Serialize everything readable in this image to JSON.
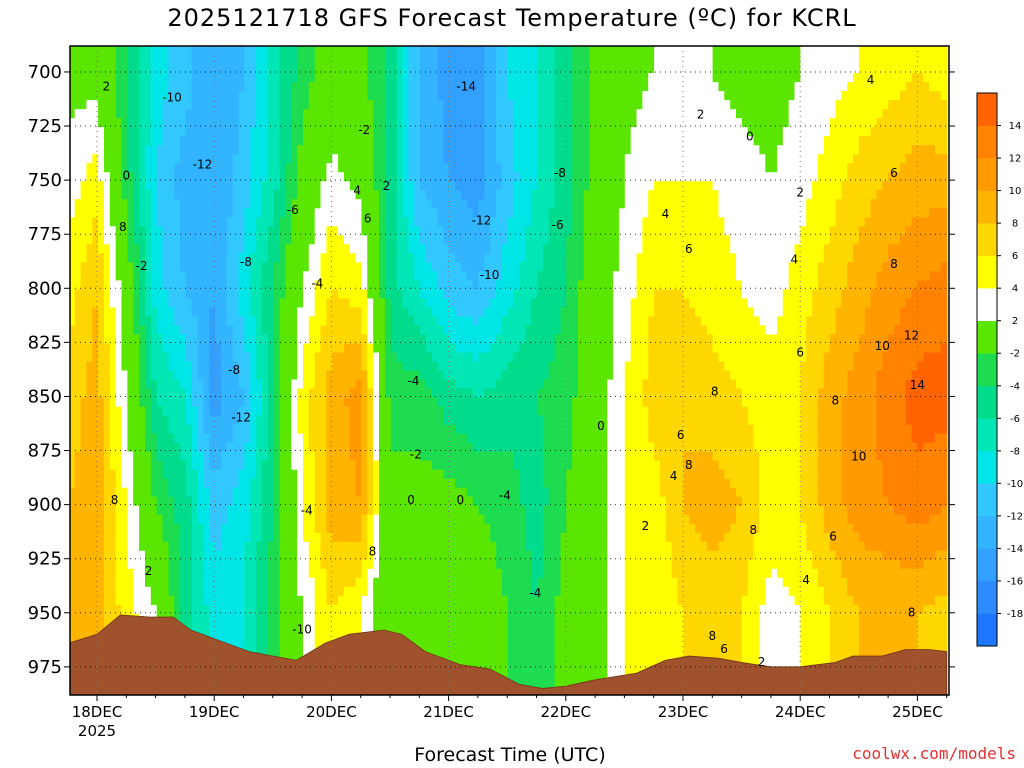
{
  "title": "2025121718 GFS Forecast Temperature (ºC) for KCRL",
  "xlabel": "Forecast Time (UTC)",
  "credit": "coolwx.com/models",
  "chart_data": {
    "type": "heatmap",
    "title": "2025121718 GFS Forecast Temperature (ºC) for KCRL",
    "xlabel": "Forecast Time (UTC)",
    "ylabel": "",
    "x_ticks": [
      {
        "label": "18DEC",
        "sub": "2025",
        "t": 0
      },
      {
        "label": "19DEC",
        "sub": "",
        "t": 1
      },
      {
        "label": "20DEC",
        "sub": "",
        "t": 2
      },
      {
        "label": "21DEC",
        "sub": "",
        "t": 3
      },
      {
        "label": "22DEC",
        "sub": "",
        "t": 4
      },
      {
        "label": "23DEC",
        "sub": "",
        "t": 5
      },
      {
        "label": "24DEC",
        "sub": "",
        "t": 6
      },
      {
        "label": "25DEC",
        "sub": "",
        "t": 7
      }
    ],
    "xlim": [
      -0.24,
      7.25
    ],
    "y_ticks": [
      700,
      725,
      750,
      775,
      800,
      825,
      850,
      875,
      900,
      925,
      950,
      975
    ],
    "ylim": [
      688,
      988
    ],
    "colorbar": {
      "levels": [
        -20,
        -18,
        -16,
        -14,
        -12,
        -10,
        -8,
        -6,
        -4,
        -2,
        2,
        4,
        6,
        8,
        10,
        12,
        14,
        16
      ],
      "labels": [
        -18,
        -16,
        -14,
        -12,
        -10,
        -8,
        -6,
        -4,
        -2,
        2,
        4,
        6,
        8,
        10,
        12,
        14
      ],
      "colors": [
        "#1e78ff",
        "#2c8cff",
        "#32a0ff",
        "#32b4ff",
        "#32c8ff",
        "#00e6e6",
        "#00e6b4",
        "#00dc8c",
        "#1edc50",
        "#5ae600",
        "#ffffff",
        "#ffff00",
        "#ffd700",
        "#ffb400",
        "#ff9b00",
        "#ff8200",
        "#ff6400"
      ]
    },
    "times": [
      -0.24,
      0,
      0.25,
      0.5,
      0.75,
      1,
      1.25,
      1.5,
      1.75,
      2,
      2.25,
      2.5,
      2.75,
      3,
      3.25,
      3.5,
      3.75,
      4,
      4.25,
      4.5,
      4.75,
      5,
      5.25,
      5.5,
      5.75,
      6,
      6.25,
      6.5,
      6.75,
      7,
      7.25
    ],
    "levels": [
      700,
      750,
      800,
      850,
      900,
      950,
      988
    ],
    "temperature": [
      [
        1,
        3,
        5,
        7,
        8,
        9,
        9
      ],
      [
        1,
        5,
        8,
        9,
        9,
        9,
        9
      ],
      [
        -4,
        -3,
        0,
        2,
        4,
        5,
        5
      ],
      [
        -9,
        -10,
        -9,
        -6,
        -2,
        2,
        3
      ],
      [
        -11,
        -13,
        -12,
        -8,
        -5,
        -5,
        -5
      ],
      [
        -14,
        -14,
        -14,
        -15,
        -11,
        -9,
        -9
      ],
      [
        -12,
        -11,
        -9,
        -12,
        -9,
        -8,
        -8
      ],
      [
        -7,
        -7,
        -4,
        -5,
        -4,
        -3,
        -3
      ],
      [
        -3,
        -1,
        2,
        5,
        4,
        2,
        2
      ],
      [
        -1,
        3,
        6,
        9,
        9,
        6,
        6
      ],
      [
        -1,
        1,
        5,
        11,
        10,
        4,
        4
      ],
      [
        -5,
        -5,
        -5,
        -3,
        -1,
        -2,
        -2
      ],
      [
        -12,
        -12,
        -8,
        -3,
        -1,
        -1,
        -1
      ],
      [
        -15,
        -14,
        -11,
        -5,
        -1,
        1,
        1
      ],
      [
        -15,
        -15,
        -12,
        -6,
        -2,
        0,
        0
      ],
      [
        -10,
        -11,
        -9,
        -5,
        -3,
        -2,
        -2
      ],
      [
        -8,
        -8,
        -6,
        -4,
        -5,
        -4,
        -4
      ],
      [
        -5,
        -5,
        -4,
        -3,
        -2,
        -1,
        -1
      ],
      [
        -1,
        -1,
        0,
        0,
        1,
        1,
        1
      ],
      [
        1,
        2,
        3,
        4,
        4,
        4,
        4
      ],
      [
        2,
        4,
        6,
        7,
        5,
        4,
        4
      ],
      [
        2,
        4,
        6,
        8,
        8,
        6,
        6
      ],
      [
        2,
        4,
        5,
        7,
        9,
        7,
        7
      ],
      [
        1,
        3,
        4,
        6,
        8,
        6,
        6
      ],
      [
        1,
        2,
        3,
        5,
        5,
        3,
        3
      ],
      [
        2,
        3,
        5,
        6,
        6,
        4,
        4
      ],
      [
        3,
        5,
        7,
        9,
        9,
        6,
        6
      ],
      [
        4,
        7,
        9,
        11,
        11,
        8,
        8
      ],
      [
        5,
        8,
        11,
        13,
        12,
        8,
        8
      ],
      [
        6,
        9,
        12,
        15,
        13,
        8,
        8
      ],
      [
        5,
        9,
        13,
        15,
        12,
        7,
        7
      ]
    ],
    "terrain_pressure": [
      [
        -0.24,
        964
      ],
      [
        0,
        960
      ],
      [
        0.2,
        951
      ],
      [
        0.45,
        952
      ],
      [
        0.65,
        952
      ],
      [
        0.8,
        958
      ],
      [
        1.0,
        962
      ],
      [
        1.3,
        968
      ],
      [
        1.5,
        970
      ],
      [
        1.7,
        972
      ],
      [
        1.95,
        964
      ],
      [
        2.15,
        960
      ],
      [
        2.45,
        958
      ],
      [
        2.6,
        960
      ],
      [
        2.8,
        968
      ],
      [
        3.1,
        974
      ],
      [
        3.35,
        976
      ],
      [
        3.6,
        983
      ],
      [
        3.8,
        985
      ],
      [
        4.0,
        984
      ],
      [
        4.25,
        981
      ],
      [
        4.6,
        978
      ],
      [
        4.85,
        972
      ],
      [
        5.05,
        970
      ],
      [
        5.3,
        971
      ],
      [
        5.5,
        973
      ],
      [
        5.75,
        975
      ],
      [
        6.0,
        975
      ],
      [
        6.3,
        973
      ],
      [
        6.45,
        970
      ],
      [
        6.7,
        970
      ],
      [
        6.9,
        967
      ],
      [
        7.1,
        967
      ],
      [
        7.25,
        968
      ]
    ],
    "contour_labels": [
      {
        "t": 0.08,
        "p": 707,
        "text": "2"
      },
      {
        "t": 0.25,
        "p": 748,
        "text": "0"
      },
      {
        "t": 0.22,
        "p": 772,
        "text": "8"
      },
      {
        "t": 0.38,
        "p": 790,
        "text": "-2"
      },
      {
        "t": 0.15,
        "p": 898,
        "text": "8"
      },
      {
        "t": 0.44,
        "p": 931,
        "text": "2"
      },
      {
        "t": 0.64,
        "p": 712,
        "text": "-10"
      },
      {
        "t": 0.9,
        "p": 743,
        "text": "-12"
      },
      {
        "t": 1.27,
        "p": 788,
        "text": "-8"
      },
      {
        "t": 1.17,
        "p": 838,
        "text": "-8"
      },
      {
        "t": 1.23,
        "p": 860,
        "text": "-12"
      },
      {
        "t": 1.75,
        "p": 958,
        "text": "-10"
      },
      {
        "t": 1.67,
        "p": 764,
        "text": "-6"
      },
      {
        "t": 1.88,
        "p": 798,
        "text": "-4"
      },
      {
        "t": 1.79,
        "p": 903,
        "text": "-4"
      },
      {
        "t": 2.28,
        "p": 727,
        "text": "-2"
      },
      {
        "t": 2.22,
        "p": 755,
        "text": "4"
      },
      {
        "t": 2.47,
        "p": 753,
        "text": "2"
      },
      {
        "t": 2.31,
        "p": 768,
        "text": "6"
      },
      {
        "t": 2.35,
        "p": 922,
        "text": "8"
      },
      {
        "t": 2.7,
        "p": 843,
        "text": "-4"
      },
      {
        "t": 2.72,
        "p": 877,
        "text": "-2"
      },
      {
        "t": 2.68,
        "p": 898,
        "text": "0"
      },
      {
        "t": 3.15,
        "p": 707,
        "text": "-14"
      },
      {
        "t": 3.28,
        "p": 769,
        "text": "-12"
      },
      {
        "t": 3.35,
        "p": 794,
        "text": "-10"
      },
      {
        "t": 3.95,
        "p": 747,
        "text": "-8"
      },
      {
        "t": 3.93,
        "p": 771,
        "text": "-6"
      },
      {
        "t": 3.48,
        "p": 896,
        "text": "-4"
      },
      {
        "t": 3.74,
        "p": 941,
        "text": "-4"
      },
      {
        "t": 3.1,
        "p": 898,
        "text": "0"
      },
      {
        "t": 4.3,
        "p": 864,
        "text": "0"
      },
      {
        "t": 5.15,
        "p": 720,
        "text": "2"
      },
      {
        "t": 5.57,
        "p": 730,
        "text": "0"
      },
      {
        "t": 6.0,
        "p": 756,
        "text": "2"
      },
      {
        "t": 4.85,
        "p": 766,
        "text": "4"
      },
      {
        "t": 5.05,
        "p": 782,
        "text": "6"
      },
      {
        "t": 5.95,
        "p": 787,
        "text": "4"
      },
      {
        "t": 6.6,
        "p": 704,
        "text": "4"
      },
      {
        "t": 6.8,
        "p": 747,
        "text": "6"
      },
      {
        "t": 6.8,
        "p": 789,
        "text": "8"
      },
      {
        "t": 6.7,
        "p": 827,
        "text": "10"
      },
      {
        "t": 6.95,
        "p": 822,
        "text": "12"
      },
      {
        "t": 7.0,
        "p": 845,
        "text": "14"
      },
      {
        "t": 6.3,
        "p": 852,
        "text": "8"
      },
      {
        "t": 6.5,
        "p": 878,
        "text": "10"
      },
      {
        "t": 6.0,
        "p": 830,
        "text": "6"
      },
      {
        "t": 5.27,
        "p": 848,
        "text": "8"
      },
      {
        "t": 4.98,
        "p": 868,
        "text": "6"
      },
      {
        "t": 5.05,
        "p": 882,
        "text": "8"
      },
      {
        "t": 4.92,
        "p": 887,
        "text": "4"
      },
      {
        "t": 4.68,
        "p": 910,
        "text": "2"
      },
      {
        "t": 5.6,
        "p": 912,
        "text": "8"
      },
      {
        "t": 6.05,
        "p": 935,
        "text": "4"
      },
      {
        "t": 6.28,
        "p": 915,
        "text": "6"
      },
      {
        "t": 5.25,
        "p": 961,
        "text": "8"
      },
      {
        "t": 5.35,
        "p": 967,
        "text": "6"
      },
      {
        "t": 5.67,
        "p": 973,
        "text": "2"
      },
      {
        "t": 6.95,
        "p": 950,
        "text": "8"
      }
    ],
    "grid": true
  }
}
